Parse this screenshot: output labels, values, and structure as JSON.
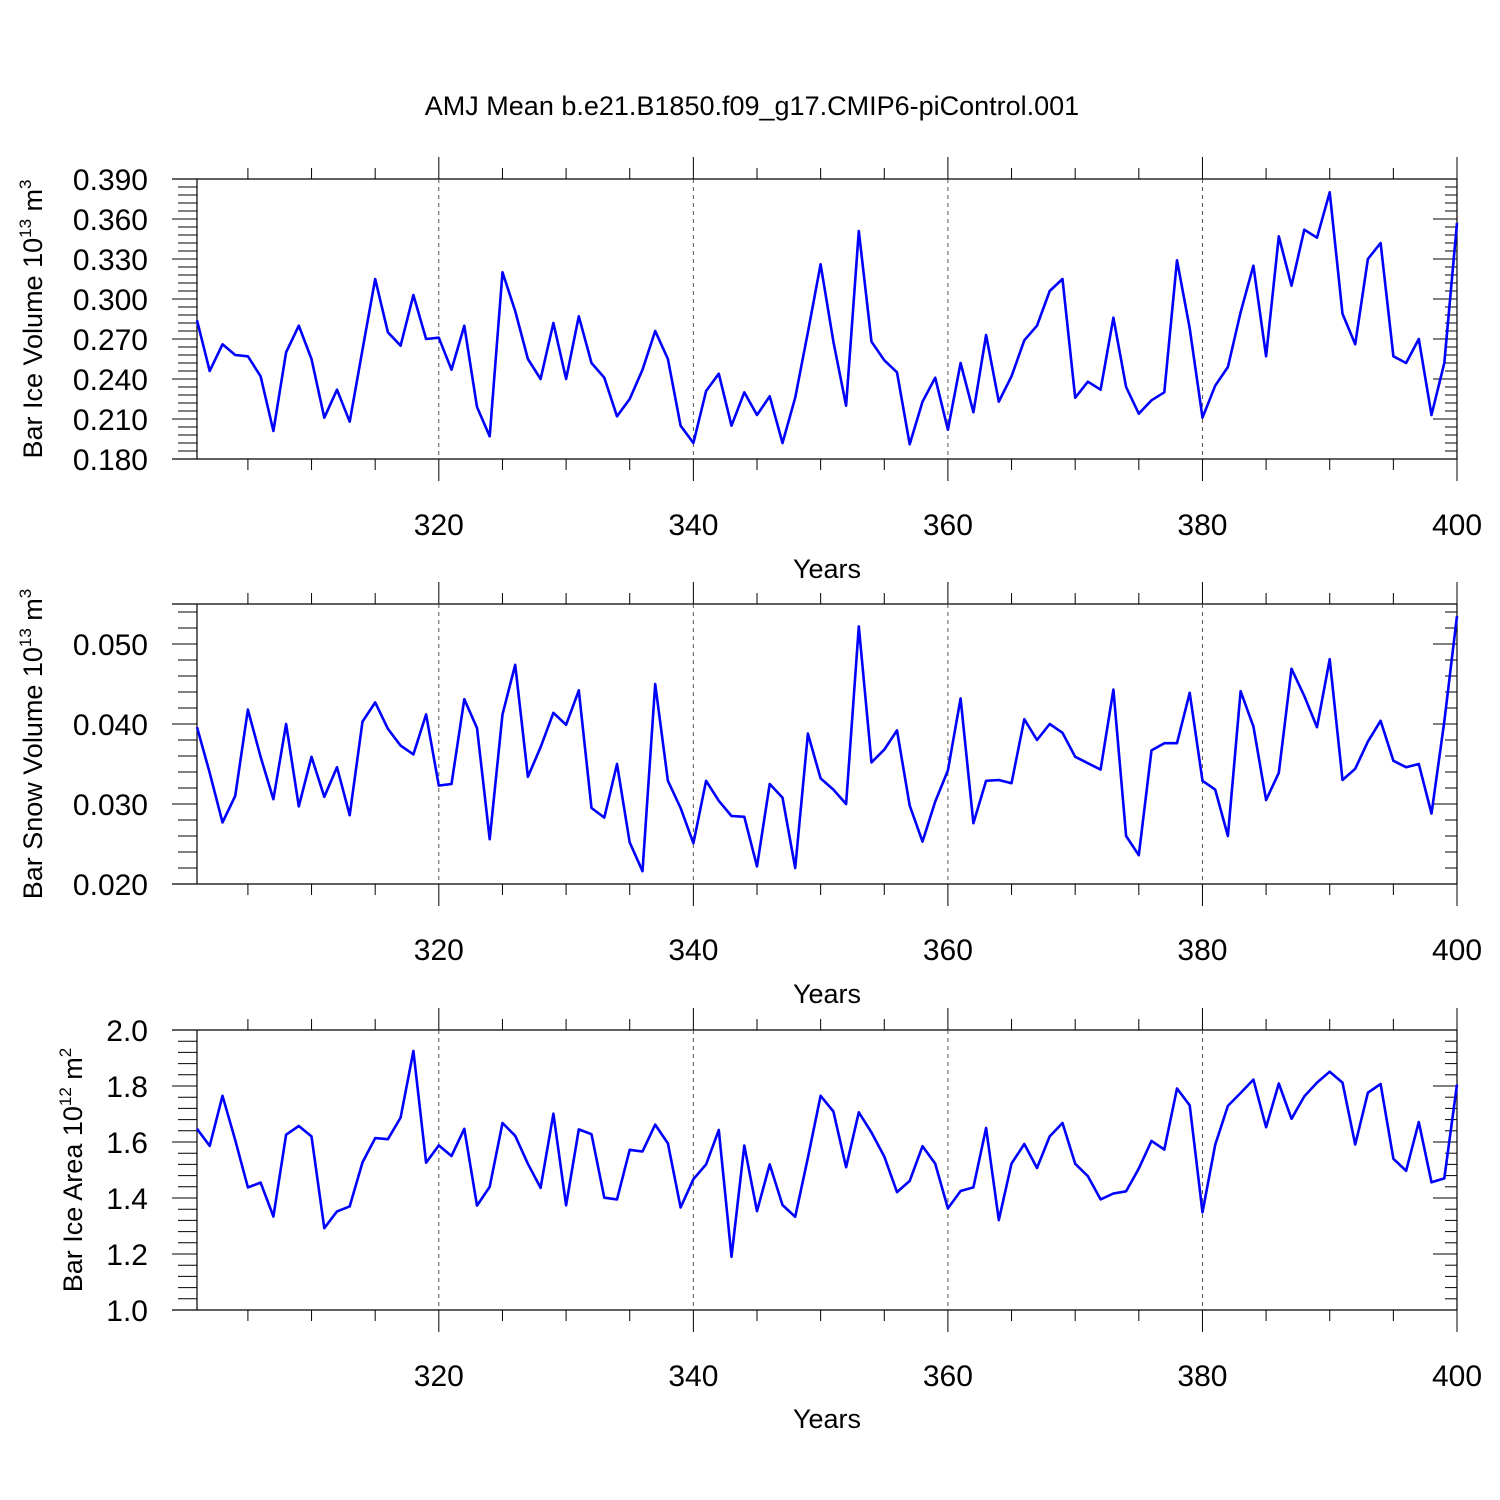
{
  "title": "AMJ Mean b.e21.B1850.f09_g17.CMIP6-piControl.001",
  "chart_data": [
    {
      "type": "line",
      "ylabel": "Bar Ice Volume 10",
      "ylabel_exp": "13",
      "ylabel_unit": " m",
      "ylabel_unit_exp": "3",
      "xlabel": "Years",
      "xlim": [
        301,
        400
      ],
      "ylim": [
        0.18,
        0.39
      ],
      "xticks": [
        "320",
        "340",
        "360",
        "380",
        "400"
      ],
      "yticks": [
        "0.180",
        "0.210",
        "0.240",
        "0.270",
        "0.300",
        "0.330",
        "0.360",
        "0.390"
      ],
      "ytick_values": [
        0.18,
        0.21,
        0.24,
        0.27,
        0.3,
        0.33,
        0.36,
        0.39
      ],
      "color": "#0000ff",
      "x_start": 301,
      "values": [
        0.284,
        0.246,
        0.266,
        0.258,
        0.257,
        0.242,
        0.201,
        0.26,
        0.28,
        0.255,
        0.211,
        0.232,
        0.208,
        0.262,
        0.315,
        0.275,
        0.265,
        0.303,
        0.27,
        0.271,
        0.247,
        0.28,
        0.219,
        0.197,
        0.32,
        0.291,
        0.255,
        0.24,
        0.282,
        0.24,
        0.287,
        0.252,
        0.241,
        0.212,
        0.225,
        0.247,
        0.276,
        0.255,
        0.205,
        0.192,
        0.231,
        0.244,
        0.205,
        0.23,
        0.213,
        0.227,
        0.192,
        0.226,
        0.275,
        0.326,
        0.268,
        0.22,
        0.351,
        0.268,
        0.254,
        0.245,
        0.191,
        0.223,
        0.241,
        0.202,
        0.252,
        0.215,
        0.273,
        0.223,
        0.242,
        0.269,
        0.28,
        0.306,
        0.315,
        0.226,
        0.238,
        0.232,
        0.286,
        0.234,
        0.214,
        0.224,
        0.23,
        0.329,
        0.278,
        0.211,
        0.235,
        0.249,
        0.29,
        0.325,
        0.257,
        0.347,
        0.31,
        0.352,
        0.346,
        0.38,
        0.289,
        0.266,
        0.33,
        0.342,
        0.257,
        0.252,
        0.27,
        0.213,
        0.252,
        0.357
      ]
    },
    {
      "type": "line",
      "ylabel": "Bar Snow Volume 10",
      "ylabel_exp": "13",
      "ylabel_unit": " m",
      "ylabel_unit_exp": "3",
      "xlabel": "Years",
      "xlim": [
        301,
        400
      ],
      "ylim": [
        0.02,
        0.055
      ],
      "xticks": [
        "320",
        "340",
        "360",
        "380",
        "400"
      ],
      "yticks": [
        "0.020",
        "0.030",
        "0.040",
        "0.050"
      ],
      "ytick_values": [
        0.02,
        0.03,
        0.04,
        0.05
      ],
      "color": "#0000ff",
      "x_start": 301,
      "values": [
        0.0396,
        0.0339,
        0.0277,
        0.031,
        0.0418,
        0.0359,
        0.0306,
        0.04,
        0.0297,
        0.0359,
        0.0309,
        0.0346,
        0.0286,
        0.0403,
        0.0427,
        0.0394,
        0.0373,
        0.0362,
        0.0412,
        0.0323,
        0.0325,
        0.0431,
        0.0395,
        0.0256,
        0.0412,
        0.0474,
        0.0334,
        0.0371,
        0.0414,
        0.0399,
        0.0442,
        0.0295,
        0.0283,
        0.035,
        0.0252,
        0.0216,
        0.045,
        0.0329,
        0.0295,
        0.0251,
        0.0329,
        0.0304,
        0.0285,
        0.0284,
        0.0222,
        0.0325,
        0.0308,
        0.022,
        0.0388,
        0.0332,
        0.0318,
        0.03,
        0.0522,
        0.0352,
        0.0368,
        0.0392,
        0.0298,
        0.0253,
        0.0303,
        0.0342,
        0.0432,
        0.0276,
        0.0329,
        0.033,
        0.0326,
        0.0406,
        0.038,
        0.04,
        0.0389,
        0.0359,
        0.0351,
        0.0343,
        0.0443,
        0.026,
        0.0236,
        0.0367,
        0.0376,
        0.0376,
        0.0439,
        0.0329,
        0.0318,
        0.026,
        0.0441,
        0.0397,
        0.0305,
        0.0339,
        0.0469,
        0.0435,
        0.0396,
        0.0481,
        0.033,
        0.0344,
        0.0378,
        0.0404,
        0.0354,
        0.0346,
        0.035,
        0.0288,
        0.0403,
        0.0535
      ]
    },
    {
      "type": "line",
      "ylabel": "Bar Ice Area 10",
      "ylabel_exp": "12",
      "ylabel_unit": " m",
      "ylabel_unit_exp": "2",
      "xlabel": "Years",
      "xlim": [
        301,
        400
      ],
      "ylim": [
        1.0,
        2.0
      ],
      "xticks": [
        "320",
        "340",
        "360",
        "380",
        "400"
      ],
      "yticks": [
        "1.0",
        "1.2",
        "1.4",
        "1.6",
        "1.8",
        "2.0"
      ],
      "ytick_values": [
        1.0,
        1.2,
        1.4,
        1.6,
        1.8,
        2.0
      ],
      "color": "#0000ff",
      "x_start": 301,
      "values": [
        1.647,
        1.586,
        1.765,
        1.607,
        1.438,
        1.455,
        1.334,
        1.626,
        1.657,
        1.62,
        1.292,
        1.352,
        1.37,
        1.527,
        1.614,
        1.61,
        1.687,
        1.925,
        1.526,
        1.588,
        1.55,
        1.647,
        1.373,
        1.44,
        1.668,
        1.622,
        1.522,
        1.436,
        1.701,
        1.374,
        1.645,
        1.628,
        1.401,
        1.395,
        1.572,
        1.566,
        1.662,
        1.595,
        1.366,
        1.467,
        1.52,
        1.643,
        1.19,
        1.587,
        1.353,
        1.52,
        1.375,
        1.333,
        1.544,
        1.765,
        1.709,
        1.51,
        1.706,
        1.634,
        1.548,
        1.421,
        1.461,
        1.585,
        1.523,
        1.363,
        1.425,
        1.438,
        1.65,
        1.321,
        1.523,
        1.593,
        1.507,
        1.62,
        1.668,
        1.522,
        1.478,
        1.395,
        1.416,
        1.424,
        1.505,
        1.604,
        1.573,
        1.791,
        1.731,
        1.349,
        1.59,
        1.729,
        1.775,
        1.823,
        1.653,
        1.809,
        1.683,
        1.763,
        1.812,
        1.851,
        1.812,
        1.591,
        1.776,
        1.807,
        1.54,
        1.497,
        1.671,
        1.456,
        1.47,
        1.805
      ]
    }
  ]
}
